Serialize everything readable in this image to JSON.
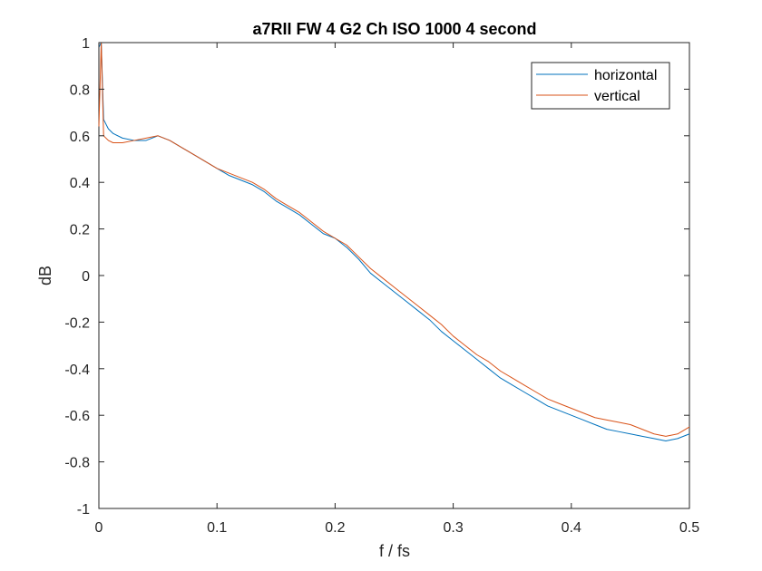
{
  "chart_data": {
    "type": "line",
    "title": "a7RII FW 4 G2 Ch ISO 1000 4 second",
    "xlabel": "f / fs",
    "ylabel": "dB",
    "xlim": [
      0,
      0.5
    ],
    "ylim": [
      -1,
      1
    ],
    "xticks": [
      0,
      0.1,
      0.2,
      0.3,
      0.4,
      0.5
    ],
    "xtick_labels": [
      "0",
      "0.1",
      "0.2",
      "0.3",
      "0.4",
      "0.5"
    ],
    "yticks": [
      -1,
      -0.8,
      -0.6,
      -0.4,
      -0.2,
      0,
      0.2,
      0.4,
      0.6,
      0.8,
      1
    ],
    "ytick_labels": [
      "-1",
      "-0.8",
      "-0.6",
      "-0.4",
      "-0.2",
      "0",
      "0.2",
      "0.4",
      "0.6",
      "0.8",
      "1"
    ],
    "grid": false,
    "legend_position": "top-right",
    "series": [
      {
        "name": "horizontal",
        "color": "#0072BD",
        "x": [
          0,
          0.002,
          0.004,
          0.008,
          0.012,
          0.02,
          0.03,
          0.04,
          0.05,
          0.06,
          0.07,
          0.08,
          0.09,
          0.1,
          0.11,
          0.12,
          0.13,
          0.14,
          0.15,
          0.16,
          0.17,
          0.18,
          0.19,
          0.2,
          0.21,
          0.22,
          0.23,
          0.24,
          0.25,
          0.26,
          0.27,
          0.28,
          0.29,
          0.3,
          0.31,
          0.32,
          0.33,
          0.34,
          0.35,
          0.36,
          0.37,
          0.38,
          0.39,
          0.4,
          0.41,
          0.42,
          0.43,
          0.44,
          0.45,
          0.46,
          0.47,
          0.48,
          0.49,
          0.5
        ],
        "y": [
          0.98,
          1.0,
          0.67,
          0.63,
          0.61,
          0.59,
          0.58,
          0.58,
          0.6,
          0.58,
          0.55,
          0.52,
          0.49,
          0.46,
          0.43,
          0.41,
          0.39,
          0.36,
          0.32,
          0.29,
          0.26,
          0.22,
          0.18,
          0.16,
          0.12,
          0.07,
          0.01,
          -0.03,
          -0.07,
          -0.11,
          -0.15,
          -0.19,
          -0.24,
          -0.28,
          -0.32,
          -0.36,
          -0.4,
          -0.44,
          -0.47,
          -0.5,
          -0.53,
          -0.56,
          -0.58,
          -0.6,
          -0.62,
          -0.64,
          -0.66,
          -0.67,
          -0.68,
          -0.69,
          -0.7,
          -0.71,
          -0.7,
          -0.68
        ]
      },
      {
        "name": "vertical",
        "color": "#D95319",
        "x": [
          0,
          0.002,
          0.004,
          0.008,
          0.012,
          0.02,
          0.03,
          0.04,
          0.05,
          0.06,
          0.07,
          0.08,
          0.09,
          0.1,
          0.11,
          0.12,
          0.13,
          0.14,
          0.15,
          0.16,
          0.17,
          0.18,
          0.19,
          0.2,
          0.21,
          0.22,
          0.23,
          0.24,
          0.25,
          0.26,
          0.27,
          0.28,
          0.29,
          0.3,
          0.31,
          0.32,
          0.33,
          0.34,
          0.35,
          0.36,
          0.37,
          0.38,
          0.39,
          0.4,
          0.41,
          0.42,
          0.43,
          0.44,
          0.45,
          0.46,
          0.47,
          0.48,
          0.49,
          0.5
        ],
        "y": [
          0.64,
          1.0,
          0.6,
          0.58,
          0.57,
          0.57,
          0.58,
          0.59,
          0.6,
          0.58,
          0.55,
          0.52,
          0.49,
          0.46,
          0.44,
          0.42,
          0.4,
          0.37,
          0.33,
          0.3,
          0.27,
          0.23,
          0.19,
          0.16,
          0.13,
          0.08,
          0.03,
          -0.01,
          -0.05,
          -0.09,
          -0.13,
          -0.17,
          -0.21,
          -0.26,
          -0.3,
          -0.34,
          -0.37,
          -0.41,
          -0.44,
          -0.47,
          -0.5,
          -0.53,
          -0.55,
          -0.57,
          -0.59,
          -0.61,
          -0.62,
          -0.63,
          -0.64,
          -0.66,
          -0.68,
          -0.69,
          -0.68,
          -0.65
        ]
      }
    ]
  }
}
